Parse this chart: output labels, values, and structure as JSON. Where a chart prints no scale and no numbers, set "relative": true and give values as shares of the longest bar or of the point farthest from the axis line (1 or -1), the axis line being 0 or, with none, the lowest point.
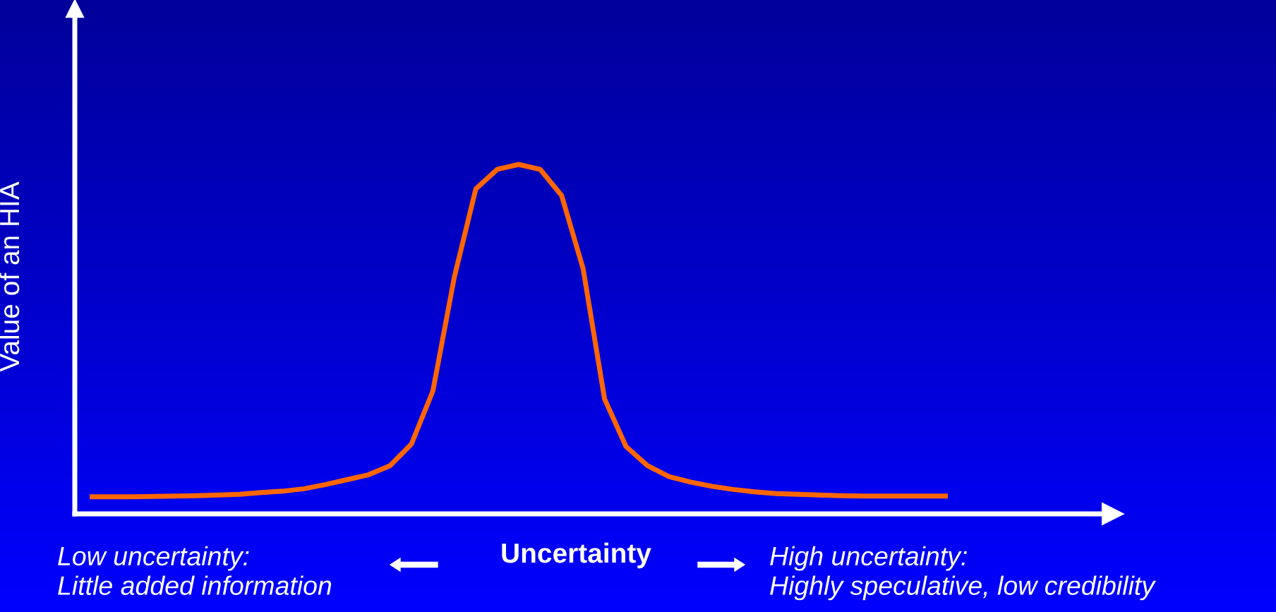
{
  "chart_data": {
    "type": "line",
    "relative": true,
    "ylabel": "Value of an HIA",
    "xlabel": "Uncertainty",
    "annotations": [
      "Low uncertainty:\nLittle added information",
      "High uncertainty:\nHighly speculative, low credibility"
    ],
    "categories": [
      null,
      null,
      null,
      null,
      null,
      null,
      null,
      null,
      null,
      null,
      null,
      null,
      null,
      null,
      null,
      null,
      null,
      null,
      null,
      null,
      null,
      null,
      null,
      null,
      null,
      null,
      null,
      null,
      null,
      null,
      null,
      null,
      null,
      null,
      null,
      null,
      null,
      null,
      null,
      null,
      null
    ],
    "series": [
      {
        "color": "#ff6600",
        "values": [
          0.049,
          0.049,
          0.049,
          0.05,
          0.051,
          0.052,
          0.054,
          0.056,
          0.061,
          0.065,
          0.072,
          0.084,
          0.098,
          0.112,
          0.138,
          0.2,
          0.352,
          0.678,
          0.93,
          0.986,
          1,
          0.986,
          0.911,
          0.702,
          0.329,
          0.193,
          0.138,
          0.107,
          0.091,
          0.079,
          0.07,
          0.063,
          0.058,
          0.056,
          0.054,
          0.052,
          0.051,
          0.051,
          0.051,
          0.051,
          0.051
        ]
      }
    ],
    "grid": false,
    "legend": false,
    "marker": "none",
    "line_style": "solid"
  }
}
